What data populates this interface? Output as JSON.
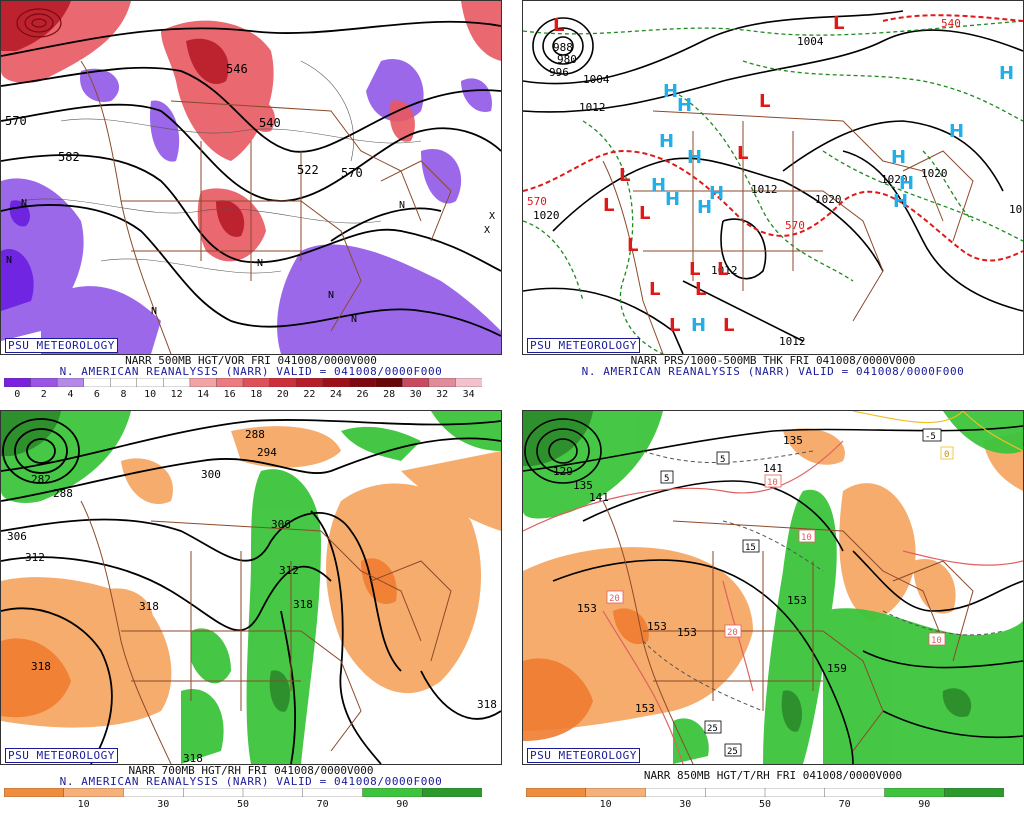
{
  "panels": {
    "p1": {
      "badge": "PSU METEOROLOGY",
      "caption": "NARR 500MB HGT/VOR FRI 041008/0000V000",
      "subcaption": "N. AMERICAN REANALYSIS (NARR) VALID = 041008/0000F000",
      "colorbar": {
        "ticks": [
          "0",
          "2",
          "4",
          "6",
          "8",
          "10",
          "12",
          "14",
          "16",
          "18",
          "20",
          "22",
          "24",
          "26",
          "28",
          "30",
          "32",
          "34"
        ],
        "colors": [
          "#7b1fe0",
          "#9a55e6",
          "#b48ae8",
          "#ffffff",
          "#ffffff",
          "#ffffff",
          "#ffffff",
          "#f3a3a6",
          "#ec7a80",
          "#e0505a",
          "#cf2f3a",
          "#b81c28",
          "#9e1018",
          "#7e0810",
          "#6a0508",
          "#c84a5e",
          "#e08a9a",
          "#f3c2cc"
        ]
      },
      "labels": {
        "h570": "570",
        "h582": "582",
        "h540": "540",
        "h522": "522",
        "h546": "546",
        "h570b": "570",
        "n1": "N",
        "n2": "N",
        "n3": "N",
        "n4": "N",
        "n5": "N",
        "n6": "N",
        "n7": "N",
        "x1": "X",
        "x2": "X"
      }
    },
    "p2": {
      "badge": "PSU METEOROLOGY",
      "caption": "NARR PRS/1000-500MB THK FRI 041008/0000V000",
      "subcaption": "N. AMERICAN REANALYSIS (NARR) VALID = 041008/0000F000",
      "isobars": [
        "988",
        "980",
        "996",
        "1004",
        "1012",
        "1020",
        "1012",
        "1020",
        "1012",
        "1004",
        "1012",
        "1020",
        "1012",
        "1020"
      ],
      "thickness": [
        "570",
        "570",
        "540"
      ],
      "high_symbol": "H",
      "low_symbol": "L"
    },
    "p3": {
      "badge": "PSU METEOROLOGY",
      "caption": "NARR 700MB HGT/RH FRI 041008/0000V000",
      "subcaption": "N. AMERICAN REANALYSIS (NARR) VALID = 041008/0000F000",
      "colorbar": {
        "ticks": [
          "10",
          "30",
          "50",
          "70",
          "90"
        ],
        "colors": [
          "#f08c3c",
          "#f6b078",
          "#ffffff",
          "#ffffff",
          "#ffffff",
          "#ffffff",
          "#3cc43c",
          "#2a9a2a"
        ]
      },
      "heights": [
        "288",
        "294",
        "300",
        "306",
        "312",
        "306",
        "312",
        "318",
        "318",
        "318",
        "318",
        "318",
        "282",
        "288"
      ]
    },
    "p4": {
      "badge": "PSU METEOROLOGY",
      "caption": "NARR 850MB HGT/T/RH FRI 041008/0000V000",
      "subcaption": "",
      "colorbar": {
        "ticks": [
          "10",
          "30",
          "50",
          "70",
          "90"
        ],
        "colors": [
          "#f08c3c",
          "#f6b078",
          "#ffffff",
          "#ffffff",
          "#ffffff",
          "#ffffff",
          "#3cc43c",
          "#2a9a2a"
        ]
      },
      "heights": [
        "135",
        "141",
        "153",
        "153",
        "153",
        "153",
        "153",
        "159",
        "129",
        "135",
        "141"
      ],
      "temps": [
        "-5",
        "5",
        "5",
        "15",
        "10",
        "10",
        "20",
        "20",
        "10",
        "25",
        "25",
        "0"
      ]
    }
  }
}
